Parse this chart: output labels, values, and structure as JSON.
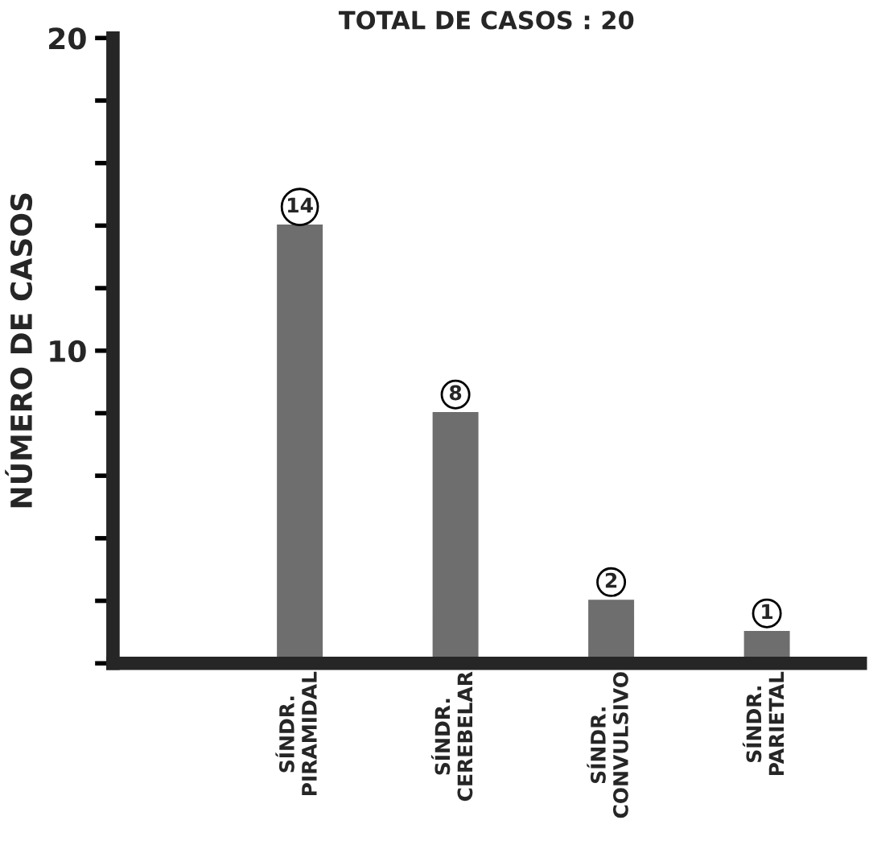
{
  "chart_data": {
    "type": "bar",
    "title": "TOTAL DE CASOS : 20",
    "ylabel": "NÚMERO DE CASOS",
    "categories": [
      "SÍNDR.\nPIRAMIDAL",
      "SÍNDR.\nCEREBELAR",
      "SÍNDR.\nCONVULSIVO",
      "SÍNDR.\nPARIETAL"
    ],
    "values": [
      14,
      8,
      2,
      1
    ],
    "color": "#6e6e6e",
    "data_labels": true,
    "ylim": [
      0,
      20
    ],
    "yticks": [
      {
        "value": 0,
        "label": null
      },
      {
        "value": 2,
        "label": null
      },
      {
        "value": 4,
        "label": null
      },
      {
        "value": 6,
        "label": null
      },
      {
        "value": 8,
        "label": null
      },
      10,
      {
        "value": 12,
        "label": null
      },
      {
        "value": 14,
        "label": null
      },
      {
        "value": 16,
        "label": null
      },
      {
        "value": 18,
        "label": null
      },
      20
    ],
    "grid": false,
    "legend": false
  }
}
